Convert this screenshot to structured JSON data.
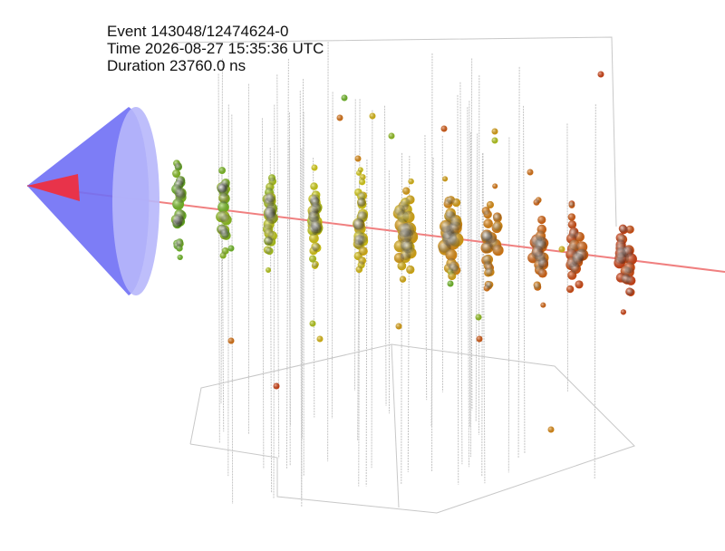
{
  "event_info": {
    "event": "Event 143048/12474624-0",
    "time": "Time 2026-08-27 15:35:36 UTC",
    "duration": "Duration 23760.0 ns"
  }
}
